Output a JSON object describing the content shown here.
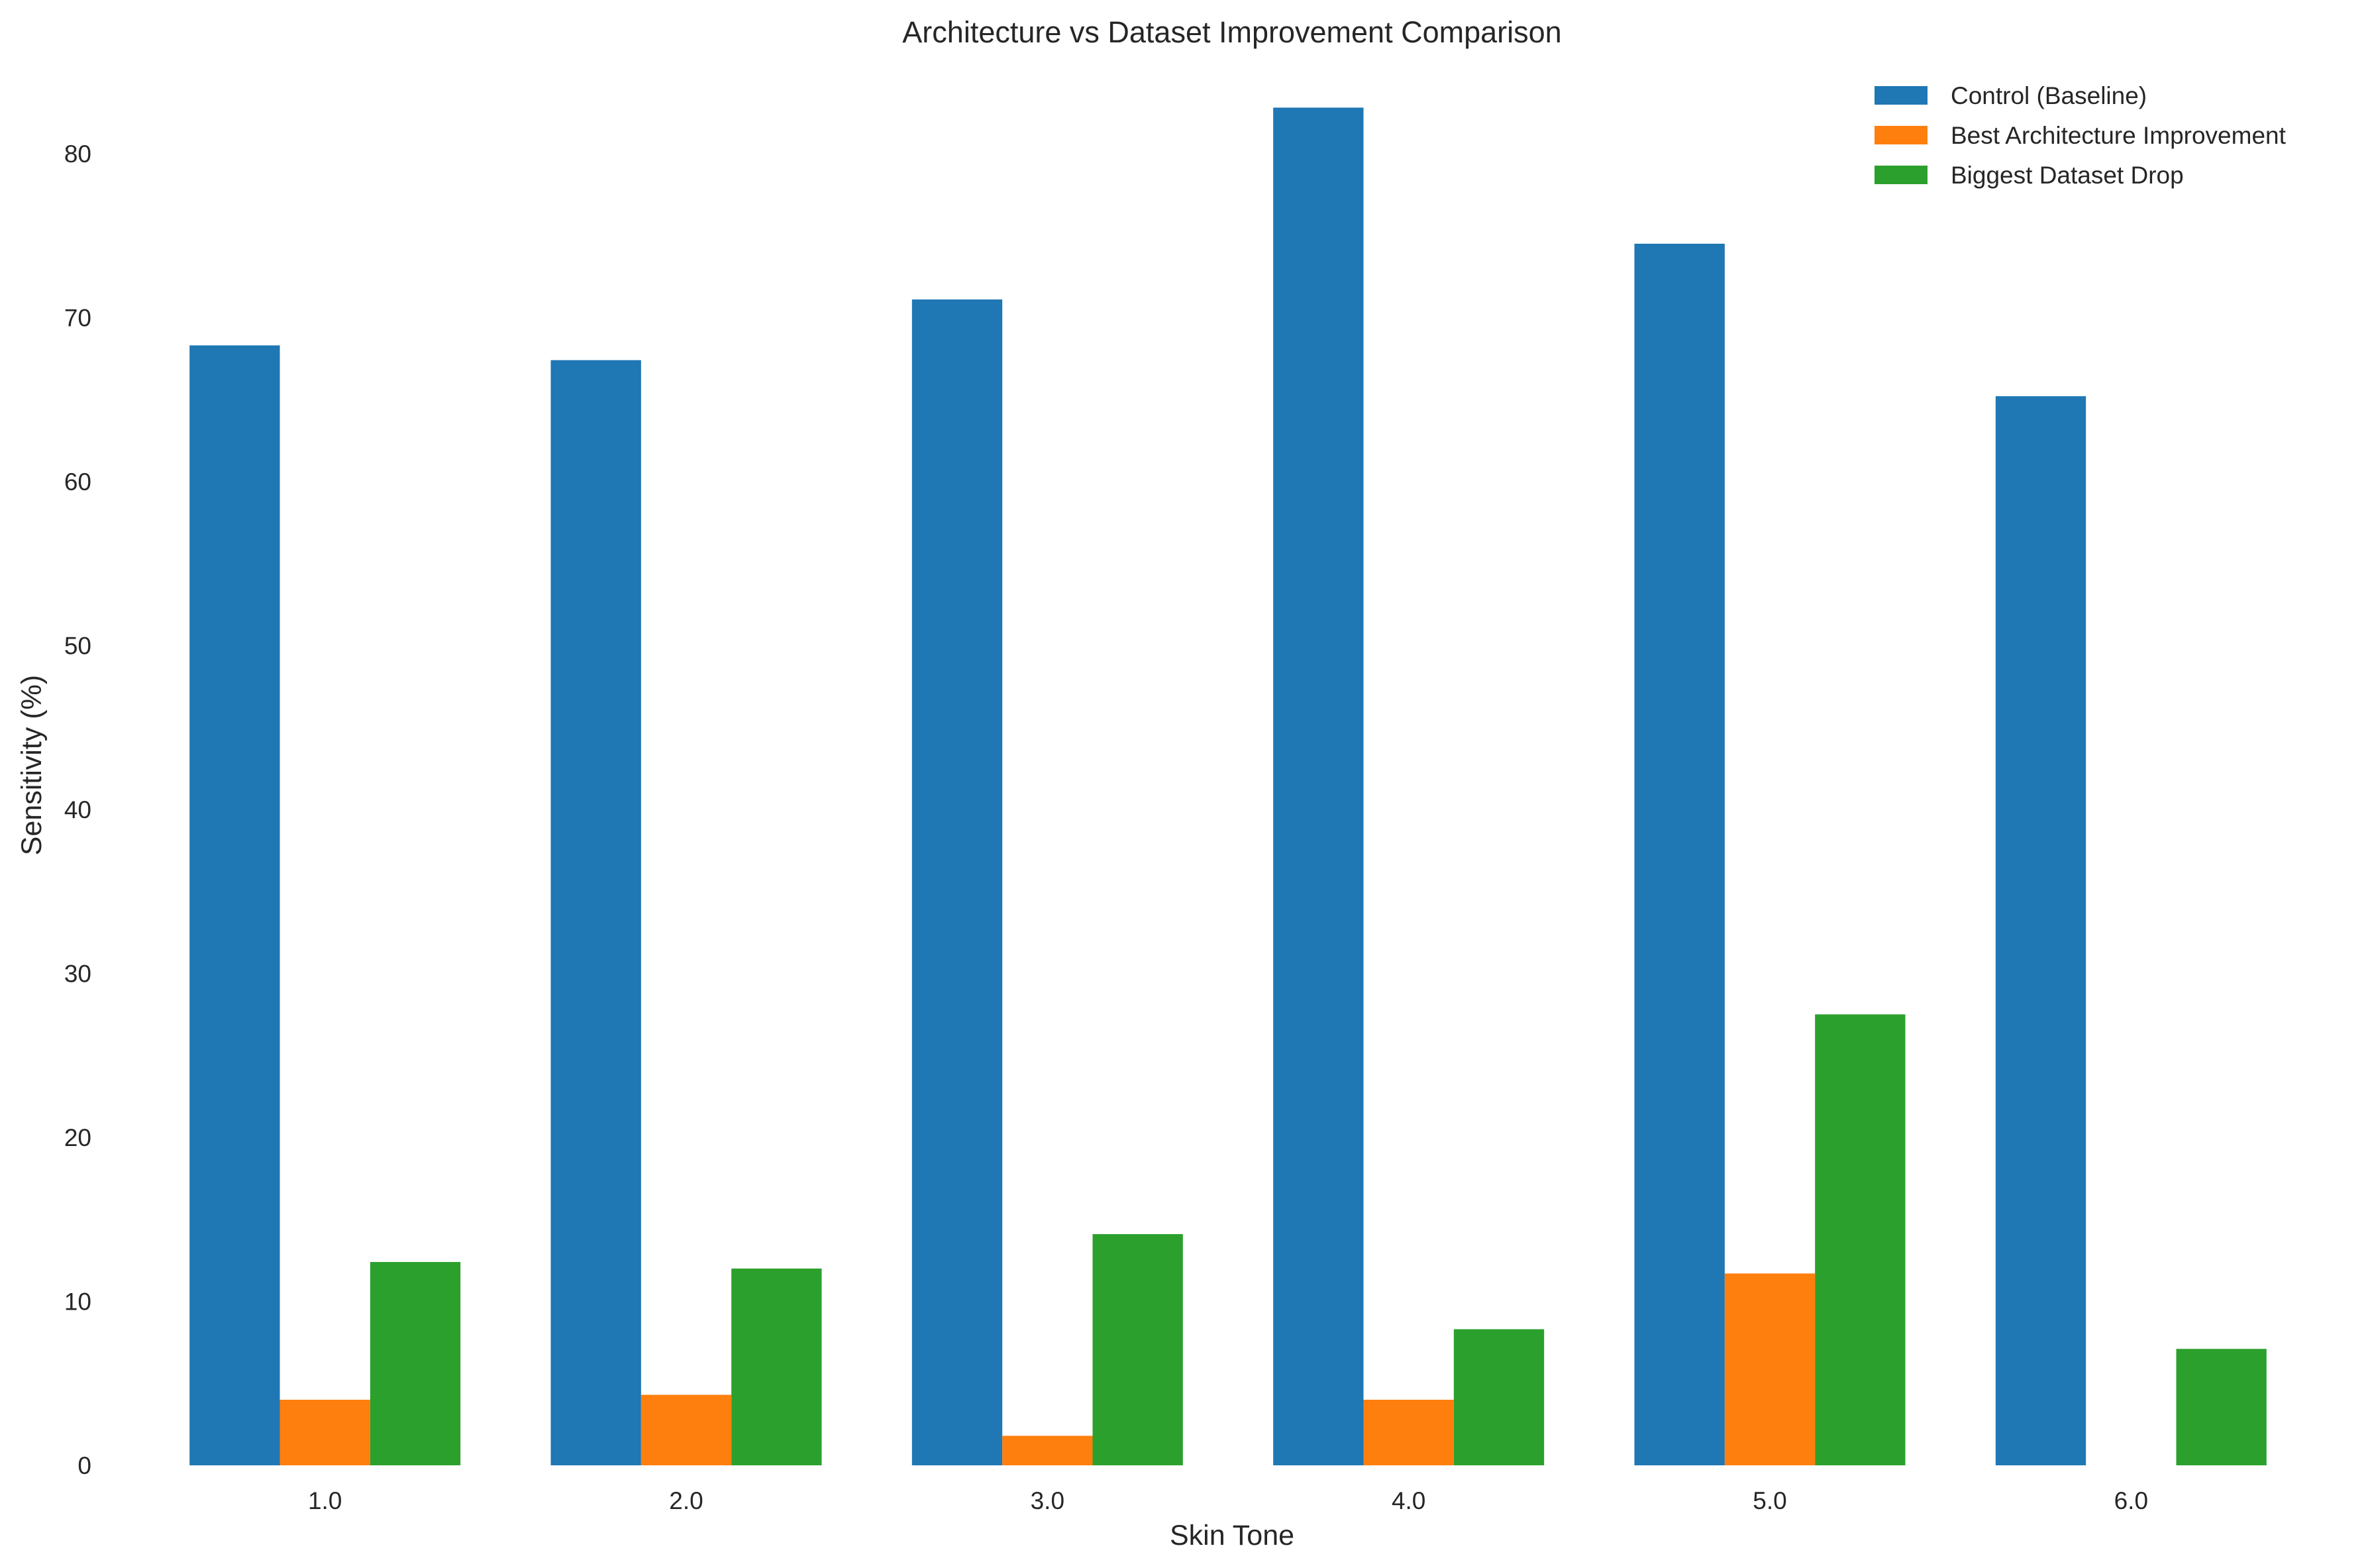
{
  "chart_data": {
    "type": "bar",
    "title": "Architecture vs Dataset Improvement Comparison",
    "xlabel": "Skin Tone",
    "ylabel": "Sensitivity (%)",
    "categories": [
      "1.0",
      "2.0",
      "3.0",
      "4.0",
      "5.0",
      "6.0"
    ],
    "series": [
      {
        "name": "Control (Baseline)",
        "color": "#1f77b4",
        "values": [
          68.3,
          67.4,
          71.1,
          82.8,
          74.5,
          65.2
        ]
      },
      {
        "name": "Best Architecture Improvement",
        "color": "#ff7f0e",
        "values": [
          4.0,
          4.3,
          1.8,
          4.0,
          11.7,
          0
        ]
      },
      {
        "name": "Biggest Dataset Drop",
        "color": "#2ca02c",
        "values": [
          12.4,
          12.0,
          14.1,
          8.3,
          27.5,
          7.1
        ]
      }
    ],
    "ylim": [
      0,
      85
    ],
    "yticks": [
      0,
      10,
      20,
      30,
      40,
      50,
      60,
      70,
      80
    ],
    "grid": false,
    "legend_position": "top-right"
  }
}
